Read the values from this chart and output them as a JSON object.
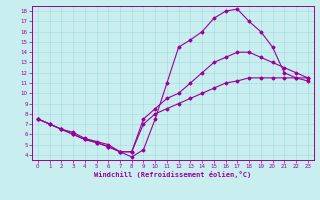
{
  "xlabel": "Windchill (Refroidissement éolien,°C)",
  "bg_color": "#c8eef0",
  "line_color": "#990099",
  "grid_color": "#aadddd",
  "xlim": [
    -0.5,
    23.5
  ],
  "ylim": [
    3.5,
    18.5
  ],
  "xticks": [
    0,
    1,
    2,
    3,
    4,
    5,
    6,
    7,
    8,
    9,
    10,
    11,
    12,
    13,
    14,
    15,
    16,
    17,
    18,
    19,
    20,
    21,
    22,
    23
  ],
  "yticks": [
    4,
    5,
    6,
    7,
    8,
    9,
    10,
    11,
    12,
    13,
    14,
    15,
    16,
    17,
    18
  ],
  "curve1_x": [
    0,
    1,
    2,
    3,
    4,
    5,
    6,
    7,
    8,
    9,
    10,
    11,
    12,
    13,
    14,
    15,
    16,
    17,
    18,
    19,
    20,
    21,
    22,
    23
  ],
  "curve1_y": [
    7.5,
    7.0,
    6.5,
    6.2,
    5.6,
    5.3,
    5.0,
    4.3,
    3.8,
    4.5,
    7.5,
    11.0,
    14.5,
    15.2,
    16.0,
    17.3,
    18.0,
    18.2,
    17.0,
    16.0,
    14.5,
    12.0,
    11.5,
    11.2
  ],
  "curve2_x": [
    0,
    1,
    2,
    3,
    4,
    5,
    6,
    7,
    8,
    9,
    10,
    11,
    12,
    13,
    14,
    15,
    16,
    17,
    18,
    19,
    20,
    21,
    22,
    23
  ],
  "curve2_y": [
    7.5,
    7.0,
    6.5,
    6.0,
    5.5,
    5.2,
    4.8,
    4.3,
    4.3,
    7.5,
    8.5,
    9.5,
    10.0,
    11.0,
    12.0,
    13.0,
    13.5,
    14.0,
    14.0,
    13.5,
    13.0,
    12.5,
    12.0,
    11.5
  ],
  "curve3_x": [
    0,
    1,
    2,
    3,
    4,
    5,
    6,
    7,
    8,
    9,
    10,
    11,
    12,
    13,
    14,
    15,
    16,
    17,
    18,
    19,
    20,
    21,
    22,
    23
  ],
  "curve3_y": [
    7.5,
    7.0,
    6.5,
    6.0,
    5.5,
    5.2,
    4.8,
    4.3,
    4.3,
    7.0,
    8.0,
    8.5,
    9.0,
    9.5,
    10.0,
    10.5,
    11.0,
    11.2,
    11.5,
    11.5,
    11.5,
    11.5,
    11.5,
    11.5
  ]
}
